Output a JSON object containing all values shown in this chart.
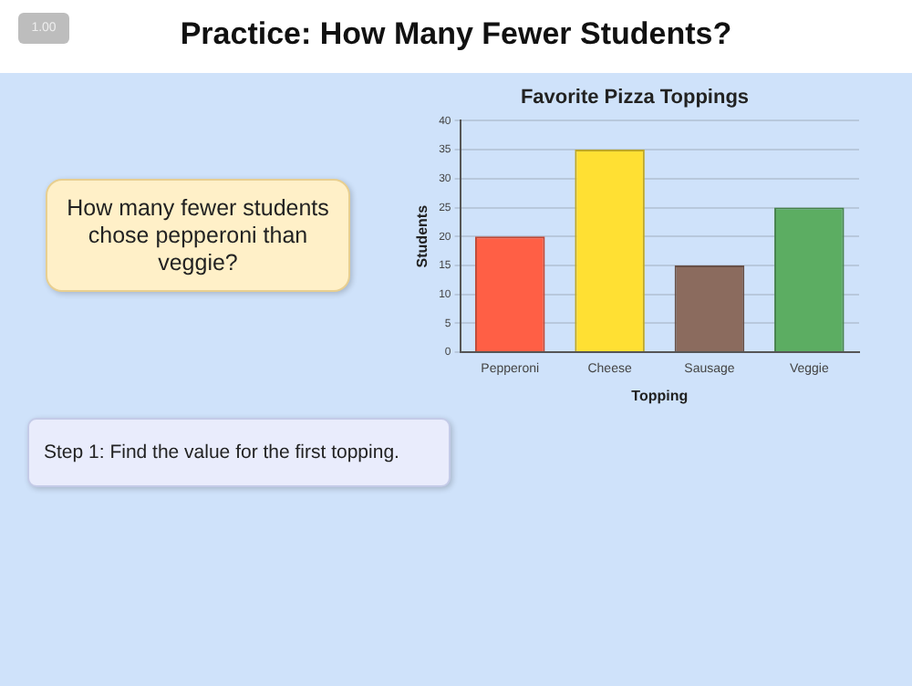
{
  "chart_data": {
    "type": "bar",
    "title": "Favorite Pizza Toppings",
    "xlabel": "Topping",
    "ylabel": "Students",
    "categories": [
      "Pepperoni",
      "Cheese",
      "Sausage",
      "Veggie"
    ],
    "values": [
      20,
      35,
      15,
      25
    ],
    "colors": [
      "#ff5f45",
      "#ffe033",
      "#8b6b5e",
      "#5cad62"
    ],
    "ylim": [
      0,
      40
    ],
    "yticks": [
      0,
      5,
      10,
      15,
      20,
      25,
      30,
      35,
      40
    ],
    "grid": "y",
    "legend": false,
    "annotations": [
      "1.00",
      "Practice: How Many Fewer Students?",
      "How many fewer students chose pepperoni than veggie?",
      "Step 1: Find the value for the first topping."
    ]
  }
}
